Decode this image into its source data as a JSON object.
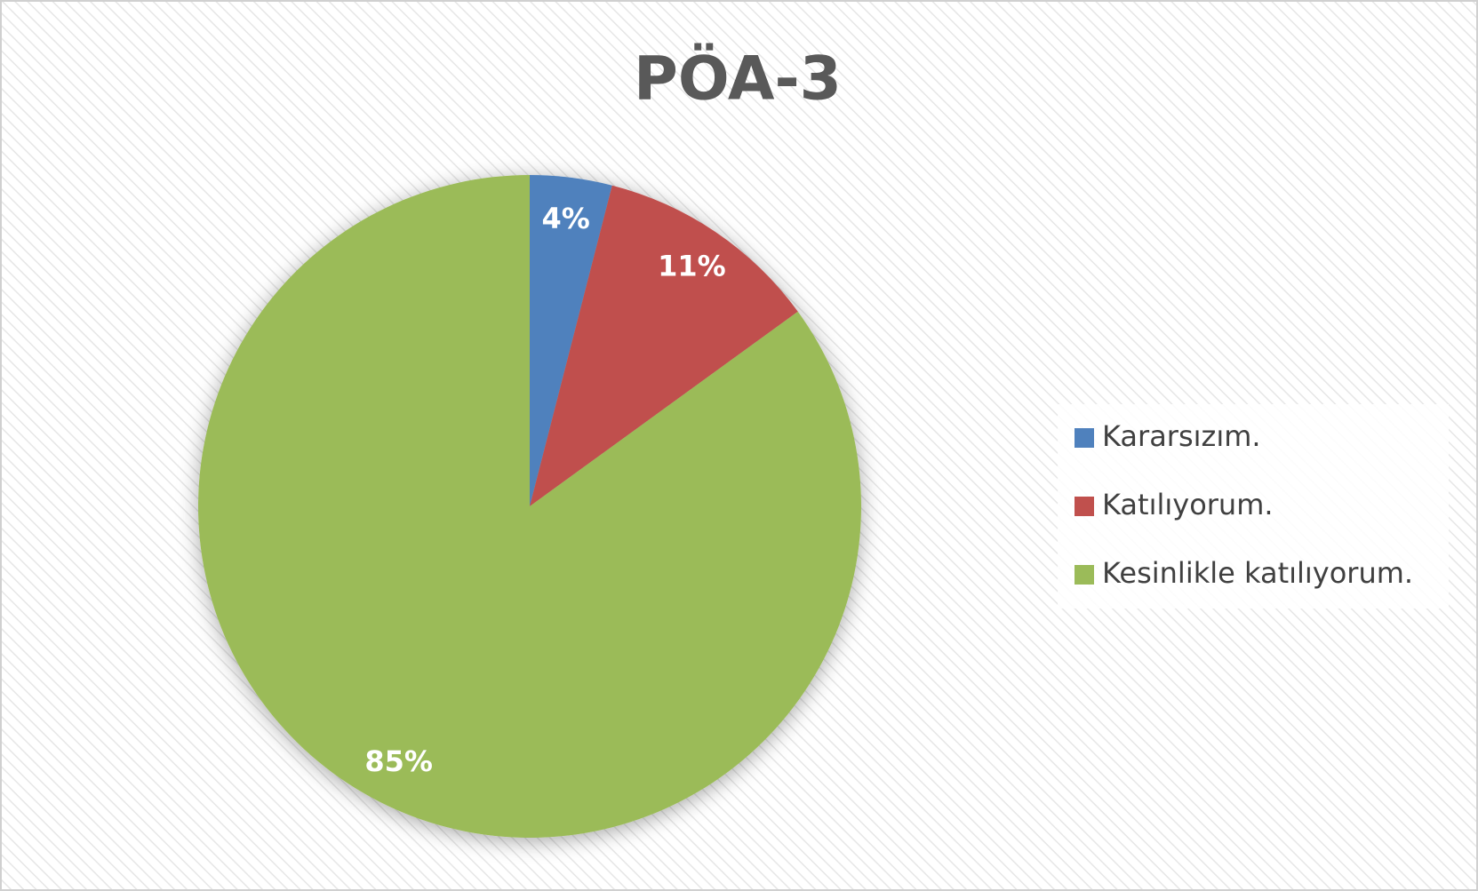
{
  "chart_data": {
    "type": "pie",
    "title": "PÖA-3",
    "categories": [
      "Kararsızım.",
      "Katılıyorum.",
      "Kesinlikle katılıyorum."
    ],
    "values": [
      4,
      11,
      85
    ],
    "value_labels": [
      "4%",
      "11%",
      "85%"
    ],
    "colors": [
      "#4f81bd",
      "#c0504d",
      "#9bbb59"
    ],
    "legend": "right"
  }
}
